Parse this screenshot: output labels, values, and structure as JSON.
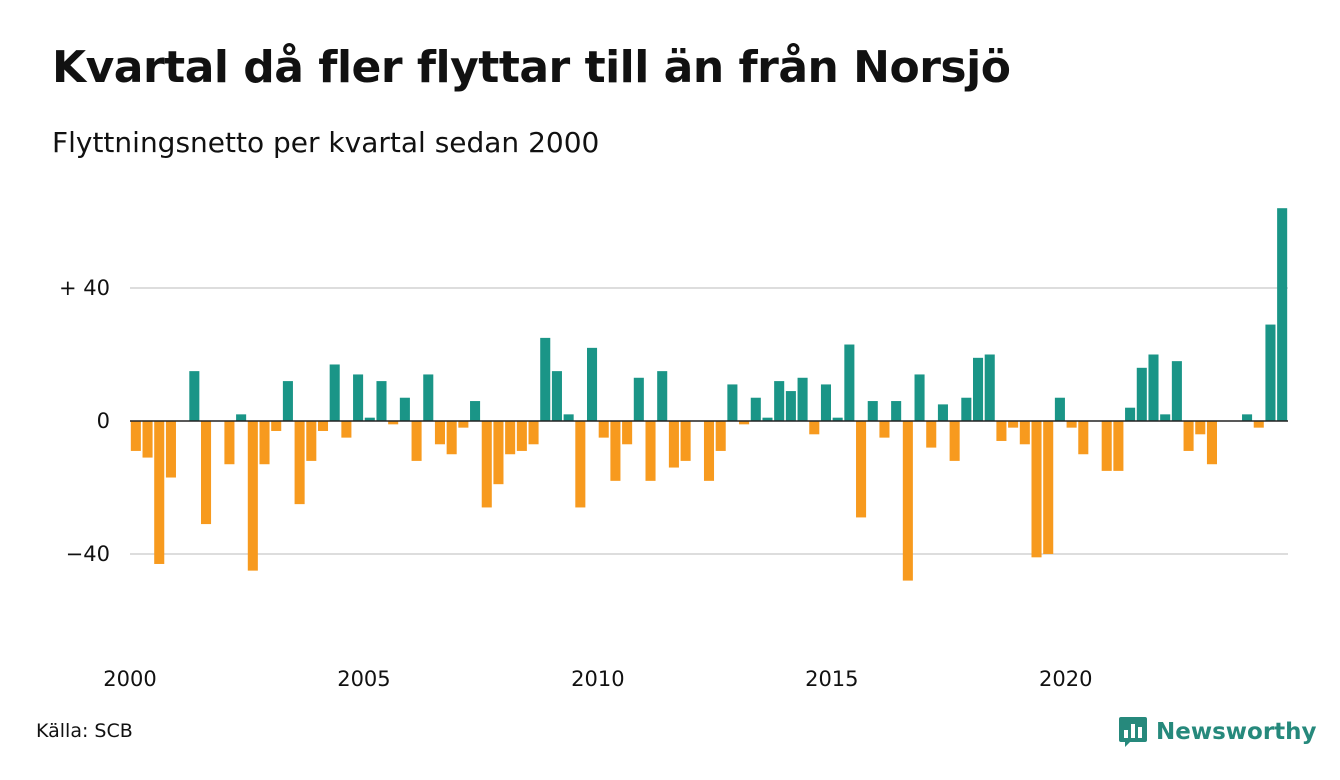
{
  "title": "Kvartal då fler flyttar till än från Norsjö",
  "subtitle": "Flyttningsnetto per kvartal sedan 2000",
  "source": "Källa: SCB",
  "brand": {
    "name": "Newsworthy",
    "logo_icon": "bar-chart-logo-icon"
  },
  "colors": {
    "positive": "#1a9587",
    "negative": "#f79a1e",
    "grid": "#dddddd",
    "brand": "#26897c"
  },
  "chart_data": {
    "type": "bar",
    "x_start": "2000 Q1",
    "interval": "quarter",
    "y_ticks": [
      {
        "value": 40,
        "label": "+ 40"
      },
      {
        "value": 0,
        "label": "0"
      },
      {
        "value": -40,
        "label": "−40"
      }
    ],
    "x_ticks": [
      {
        "index": 0,
        "label": "2000"
      },
      {
        "index": 20,
        "label": "2005"
      },
      {
        "index": 40,
        "label": "2010"
      },
      {
        "index": 60,
        "label": "2015"
      },
      {
        "index": 80,
        "label": "2020"
      }
    ],
    "ylim": [
      -60,
      65
    ],
    "values": [
      -9,
      -11,
      -43,
      -17,
      0,
      15,
      -31,
      0,
      -13,
      2,
      -45,
      -13,
      -3,
      12,
      -25,
      -12,
      -3,
      17,
      -5,
      14,
      1,
      12,
      -1,
      7,
      -12,
      14,
      -7,
      -10,
      -2,
      6,
      -26,
      -19,
      -10,
      -9,
      -7,
      25,
      15,
      2,
      -26,
      22,
      -5,
      -18,
      -7,
      13,
      -18,
      15,
      -14,
      -12,
      0,
      -18,
      -9,
      11,
      -1,
      7,
      1,
      12,
      9,
      13,
      -4,
      11,
      1,
      23,
      -29,
      6,
      -5,
      6,
      -48,
      14,
      -8,
      5,
      -12,
      7,
      19,
      20,
      -6,
      -2,
      -7,
      -41,
      -40,
      7,
      -2,
      -10,
      0,
      -15,
      -15,
      4,
      16,
      20,
      2,
      18,
      -9,
      -4,
      -13,
      0,
      0,
      2,
      -2,
      29,
      64
    ]
  }
}
